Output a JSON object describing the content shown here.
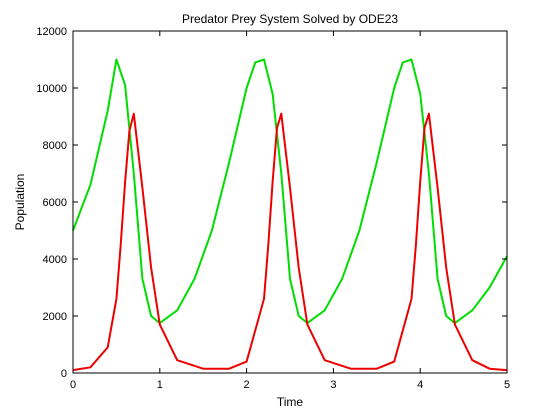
{
  "chart_data": {
    "type": "line",
    "title": "Predator Prey System Solved by ODE23",
    "xlabel": "Time",
    "ylabel": "Population",
    "xlim": [
      0,
      5
    ],
    "ylim": [
      0,
      12000
    ],
    "xticks": [
      0,
      1,
      2,
      3,
      4,
      5
    ],
    "yticks": [
      0,
      2000,
      4000,
      6000,
      8000,
      10000,
      12000
    ],
    "xtick_labels": [
      "0",
      "1",
      "2",
      "3",
      "4",
      "5"
    ],
    "ytick_labels": [
      "0",
      "2000",
      "4000",
      "6000",
      "8000",
      "10000",
      "12000"
    ],
    "grid": false,
    "legend": "none",
    "series": [
      {
        "color": "#00dd00",
        "x": [
          0,
          0.2,
          0.4,
          0.5,
          0.6,
          0.7,
          0.8,
          0.9,
          1.0,
          1.2,
          1.4,
          1.6,
          1.8,
          2.0,
          2.1,
          2.2,
          2.3,
          2.4,
          2.5,
          2.6,
          2.7,
          2.9,
          3.1,
          3.3,
          3.5,
          3.7,
          3.8,
          3.9,
          4.0,
          4.1,
          4.2,
          4.3,
          4.4,
          4.6,
          4.8,
          5.0
        ],
        "y": [
          5000,
          6600,
          9200,
          11000,
          10100,
          7000,
          3300,
          2000,
          1750,
          2200,
          3300,
          5000,
          7400,
          10000,
          10900,
          11000,
          9800,
          7000,
          3300,
          2000,
          1750,
          2200,
          3300,
          5000,
          7400,
          10000,
          10900,
          11000,
          9800,
          7000,
          3300,
          2000,
          1750,
          2200,
          3000,
          4100
        ]
      },
      {
        "color": "#ee0000",
        "x": [
          0,
          0.2,
          0.4,
          0.5,
          0.55,
          0.6,
          0.65,
          0.7,
          0.8,
          0.9,
          1.0,
          1.2,
          1.5,
          1.8,
          2.0,
          2.2,
          2.25,
          2.3,
          2.35,
          2.4,
          2.5,
          2.6,
          2.7,
          2.9,
          3.2,
          3.5,
          3.7,
          3.9,
          3.95,
          4.0,
          4.05,
          4.1,
          4.2,
          4.3,
          4.4,
          4.6,
          4.8,
          5.0
        ],
        "y": [
          100,
          200,
          900,
          2600,
          4500,
          6700,
          8500,
          9100,
          6500,
          3700,
          1700,
          450,
          150,
          150,
          400,
          2600,
          4500,
          6700,
          8600,
          9100,
          6500,
          3700,
          1700,
          450,
          150,
          150,
          400,
          2600,
          4500,
          6700,
          8600,
          9100,
          6500,
          3700,
          1700,
          450,
          150,
          100
        ]
      }
    ]
  }
}
